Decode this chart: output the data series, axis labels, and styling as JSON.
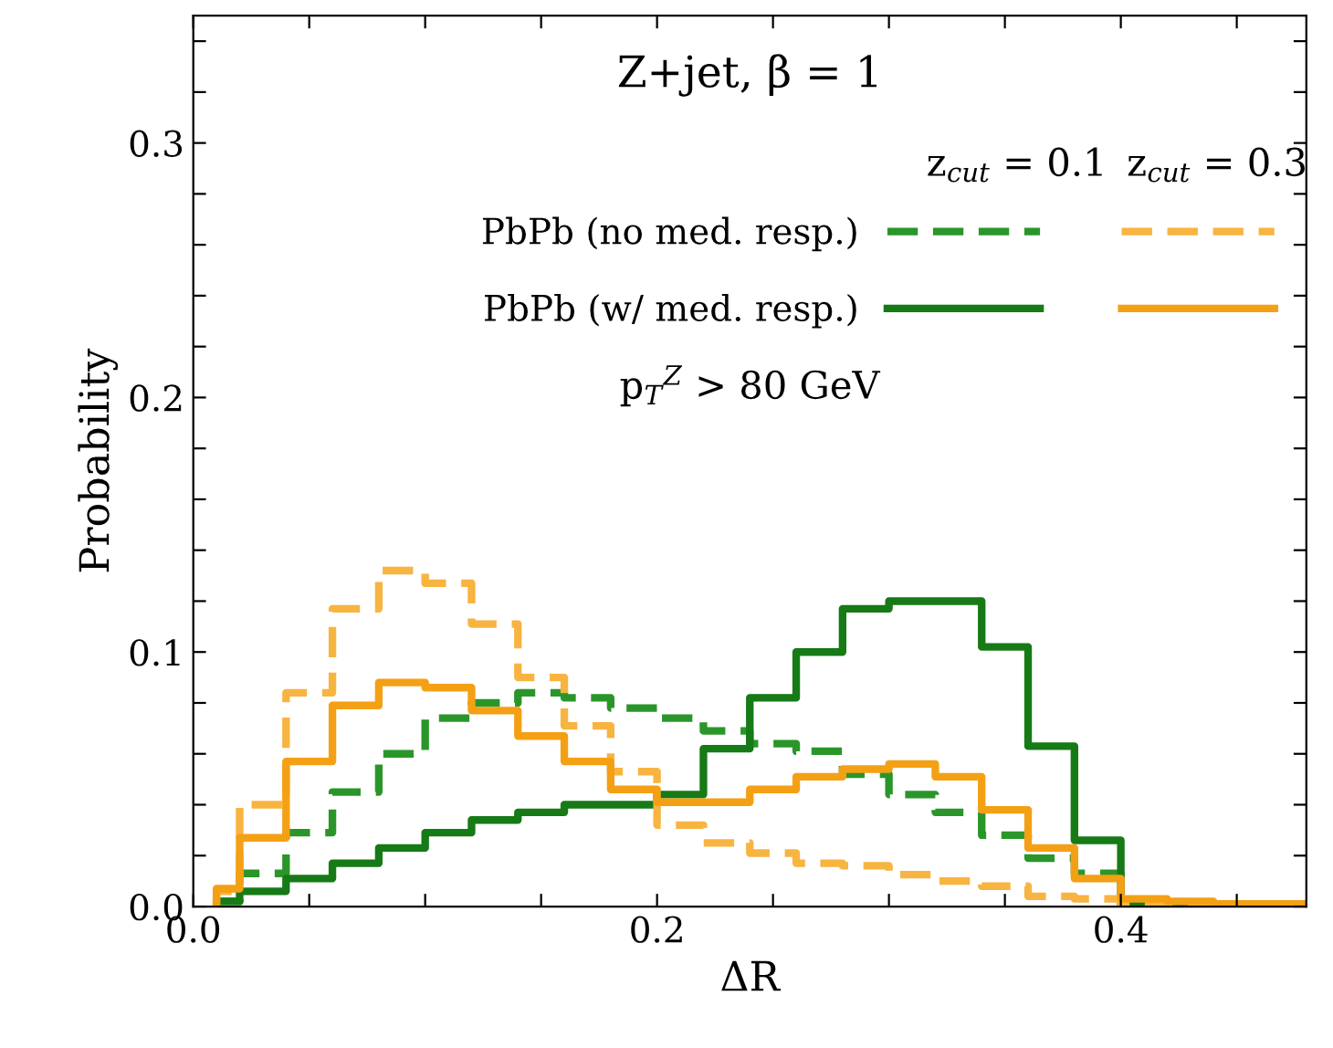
{
  "chart_data": {
    "type": "histogram",
    "title": "Z+jet, β = 1",
    "xlabel": "ΔR",
    "ylabel": "Probability",
    "annotations": [
      "z$_{cut}$ = 0.1",
      "z$_{cut}$ = 0.3",
      "p$_{T}$$^{Z}$ > 80 GeV"
    ],
    "bins": [
      0.01,
      0.02,
      0.04,
      0.06,
      0.08,
      0.1,
      0.12,
      0.14,
      0.16,
      0.18,
      0.2,
      0.22,
      0.24,
      0.26,
      0.28,
      0.3,
      0.32,
      0.34,
      0.36,
      0.38,
      0.4,
      0.42,
      0.44,
      0.46,
      0.48
    ],
    "series": [
      {
        "name": "PbPb (no med. resp.)",
        "color": "#2a962a",
        "line_style": "dashed",
        "values": [
          0.002,
          0.013,
          0.029,
          0.045,
          0.06,
          0.074,
          0.08,
          0.084,
          0.082,
          0.078,
          0.074,
          0.069,
          0.064,
          0.061,
          0.052,
          0.044,
          0.037,
          0.028,
          0.019,
          0.013,
          0.001,
          0,
          0,
          0
        ]
      },
      {
        "name": "PbPb (w/ med. resp.)",
        "color": "#167a16",
        "line_style": "solid",
        "values": [
          0.002,
          0.006,
          0.011,
          0.017,
          0.023,
          0.029,
          0.034,
          0.037,
          0.04,
          0.04,
          0.044,
          0.062,
          0.082,
          0.1,
          0.117,
          0.12,
          0.12,
          0.102,
          0.063,
          0.026,
          0.001,
          0,
          0,
          0
        ]
      },
      {
        "color": "#f8b440",
        "line_style": "dashed",
        "values": [
          0.006,
          0.04,
          0.084,
          0.117,
          0.132,
          0.127,
          0.111,
          0.09,
          0.071,
          0.053,
          0.032,
          0.025,
          0.021,
          0.017,
          0.016,
          0.0125,
          0.01,
          0.008,
          0.004,
          0.003,
          0.001,
          0,
          0,
          0
        ]
      },
      {
        "color": "#f4a015",
        "line_style": "solid",
        "values": [
          0.007,
          0.027,
          0.057,
          0.079,
          0.088,
          0.086,
          0.077,
          0.067,
          0.057,
          0.046,
          0.041,
          0.041,
          0.046,
          0.051,
          0.054,
          0.056,
          0.051,
          0.038,
          0.023,
          0.011,
          0.003,
          0.002,
          0.001,
          0.001
        ]
      }
    ],
    "xlim": [
      0,
      0.48
    ],
    "ylim": [
      0,
      0.35
    ],
    "xticks": [
      {
        "value": 0,
        "label": "0.0"
      },
      {
        "value": 0.05,
        "label": null
      },
      {
        "value": 0.1,
        "label": null
      },
      {
        "value": 0.15,
        "label": null
      },
      0.2,
      {
        "value": 0.25,
        "label": null
      },
      {
        "value": 0.3,
        "label": null
      },
      {
        "value": 0.35,
        "label": null
      },
      0.4,
      {
        "value": 0.45,
        "label": null
      }
    ],
    "yticks": [
      {
        "value": 0,
        "label": "0.0"
      },
      {
        "value": 0.02,
        "label": null
      },
      {
        "value": 0.04,
        "label": null
      },
      {
        "value": 0.06,
        "label": null
      },
      {
        "value": 0.08,
        "label": null
      },
      0.1,
      {
        "value": 0.12,
        "label": null
      },
      {
        "value": 0.14,
        "label": null
      },
      {
        "value": 0.16,
        "label": null
      },
      {
        "value": 0.18,
        "label": null
      },
      0.2,
      {
        "value": 0.22,
        "label": null
      },
      {
        "value": 0.24,
        "label": null
      },
      {
        "value": 0.26,
        "label": null
      },
      {
        "value": 0.28,
        "label": null
      },
      0.3,
      {
        "value": 0.32,
        "label": null
      },
      {
        "value": 0.34,
        "label": null
      }
    ],
    "grid": false,
    "legend": "top right"
  }
}
